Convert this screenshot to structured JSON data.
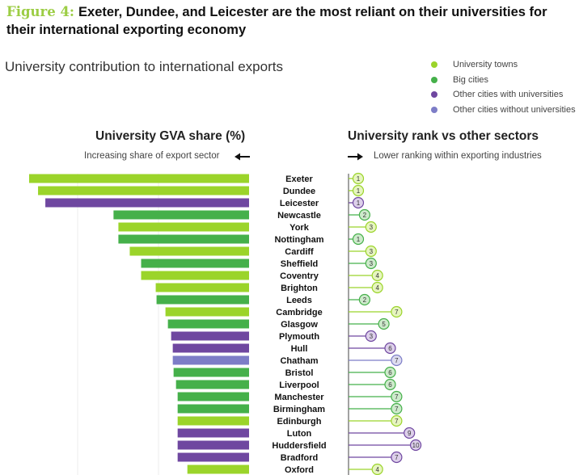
{
  "figure": {
    "label": "Figure 4:",
    "title": "Exeter, Dundee, and Leicester are the most reliant on their universities for their international exporting economy"
  },
  "subtitle": "University contribution to international exports",
  "legend": [
    {
      "label": "University towns",
      "color": "#9bd42a"
    },
    {
      "label": "Big cities",
      "color": "#45b04a"
    },
    {
      "label": "Other cities with universities",
      "color": "#6f47a0"
    },
    {
      "label": "Other cities without universities",
      "color": "#7d7dc7"
    }
  ],
  "left_panel": {
    "title": "University GVA share (%)",
    "subtitle": "Increasing share of export sector"
  },
  "right_panel": {
    "title": "University rank vs other sectors",
    "subtitle": "Lower ranking within exporting industries"
  },
  "chart_data": {
    "type": "bar",
    "title": "University contribution to international exports",
    "left_metric": "University GVA share (%)",
    "right_metric": "University rank vs other sectors",
    "note": "GVA share values are estimated relative values (no axis ticks shown)",
    "cities": [
      {
        "name": "Exeter",
        "category": "University towns",
        "gva_share": 27.1,
        "rank": 1
      },
      {
        "name": "Dundee",
        "category": "University towns",
        "gva_share": 26.0,
        "rank": 1
      },
      {
        "name": "Leicester",
        "category": "Other cities with universities",
        "gva_share": 25.1,
        "rank": 1
      },
      {
        "name": "Newcastle",
        "category": "Big cities",
        "gva_share": 16.7,
        "rank": 2
      },
      {
        "name": "York",
        "category": "University towns",
        "gva_share": 16.1,
        "rank": 3
      },
      {
        "name": "Nottingham",
        "category": "Big cities",
        "gva_share": 16.1,
        "rank": 1
      },
      {
        "name": "Cardiff",
        "category": "University towns",
        "gva_share": 14.7,
        "rank": 3
      },
      {
        "name": "Sheffield",
        "category": "Big cities",
        "gva_share": 13.3,
        "rank": 3
      },
      {
        "name": "Coventry",
        "category": "University towns",
        "gva_share": 13.3,
        "rank": 4
      },
      {
        "name": "Brighton",
        "category": "University towns",
        "gva_share": 11.5,
        "rank": 4
      },
      {
        "name": "Leeds",
        "category": "Big cities",
        "gva_share": 11.4,
        "rank": 2
      },
      {
        "name": "Cambridge",
        "category": "University towns",
        "gva_share": 10.3,
        "rank": 7
      },
      {
        "name": "Glasgow",
        "category": "Big cities",
        "gva_share": 10.0,
        "rank": 5
      },
      {
        "name": "Plymouth",
        "category": "Other cities with universities",
        "gva_share": 9.6,
        "rank": 3
      },
      {
        "name": "Hull",
        "category": "Other cities with universities",
        "gva_share": 9.4,
        "rank": 6
      },
      {
        "name": "Chatham",
        "category": "Other cities without universities",
        "gva_share": 9.4,
        "rank": 7
      },
      {
        "name": "Bristol",
        "category": "Big cities",
        "gva_share": 9.3,
        "rank": 6
      },
      {
        "name": "Liverpool",
        "category": "Big cities",
        "gva_share": 9.0,
        "rank": 6
      },
      {
        "name": "Manchester",
        "category": "Big cities",
        "gva_share": 8.8,
        "rank": 7
      },
      {
        "name": "Birmingham",
        "category": "Big cities",
        "gva_share": 8.8,
        "rank": 7
      },
      {
        "name": "Edinburgh",
        "category": "University towns",
        "gva_share": 8.8,
        "rank": 7
      },
      {
        "name": "Luton",
        "category": "Other cities with universities",
        "gva_share": 8.8,
        "rank": 9
      },
      {
        "name": "Huddersfield",
        "category": "Other cities with universities",
        "gva_share": 8.8,
        "rank": 10
      },
      {
        "name": "Bradford",
        "category": "Other cities with universities",
        "gva_share": 8.8,
        "rank": 7
      },
      {
        "name": "Oxford",
        "category": "University towns",
        "gva_share": 7.6,
        "rank": 4
      }
    ],
    "x_max_share": 27.1,
    "rank_max": 10
  }
}
